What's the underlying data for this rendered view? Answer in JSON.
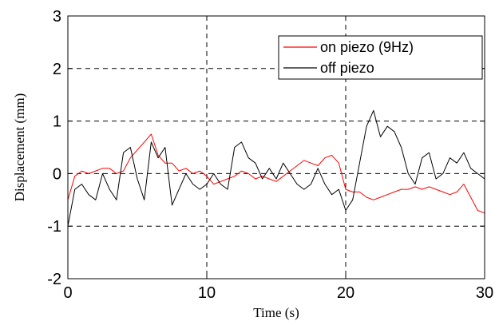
{
  "chart_data": {
    "type": "line",
    "title": "",
    "xlabel": "Time (s)",
    "ylabel": "Displacement (mm)",
    "xlim": [
      0,
      30
    ],
    "ylim": [
      -2,
      3
    ],
    "xticks": [
      0,
      10,
      20,
      30
    ],
    "yticks": [
      -2,
      -1,
      0,
      1,
      2,
      3
    ],
    "xtick_labels": [
      "0",
      "10",
      "20",
      "30"
    ],
    "ytick_labels": [
      "-2",
      "-1",
      "0",
      "1",
      "2",
      "3"
    ],
    "grid": true,
    "legend_position": "top-right",
    "series": [
      {
        "name": "on piezo (9Hz)",
        "color": "#ff0000",
        "x": [
          0,
          0.5,
          1,
          1.5,
          2,
          2.5,
          3,
          3.5,
          4,
          4.5,
          5,
          5.5,
          6,
          6.5,
          7,
          7.5,
          8,
          8.5,
          9,
          9.5,
          10,
          10.5,
          11,
          11.5,
          12,
          12.5,
          13,
          13.5,
          14,
          14.5,
          15,
          15.5,
          16,
          16.5,
          17,
          17.5,
          18,
          18.5,
          19,
          19.5,
          20,
          20.5,
          21,
          21.5,
          22,
          22.5,
          23,
          23.5,
          24,
          24.5,
          25,
          25.5,
          26,
          26.5,
          27,
          27.5,
          28,
          28.5,
          29,
          29.5,
          30
        ],
        "y": [
          -0.5,
          -0.05,
          0.05,
          0.0,
          0.05,
          0.1,
          0.1,
          0.0,
          0.05,
          0.3,
          0.45,
          0.6,
          0.75,
          0.35,
          0.2,
          0.2,
          0.05,
          0.1,
          0.0,
          0.05,
          -0.05,
          -0.2,
          -0.15,
          -0.1,
          -0.05,
          0.05,
          0.0,
          -0.1,
          -0.05,
          -0.1,
          -0.15,
          -0.05,
          0.05,
          0.15,
          0.25,
          0.2,
          0.15,
          0.3,
          0.35,
          0.2,
          -0.3,
          -0.35,
          -0.35,
          -0.45,
          -0.5,
          -0.45,
          -0.4,
          -0.35,
          -0.3,
          -0.3,
          -0.25,
          -0.3,
          -0.25,
          -0.3,
          -0.35,
          -0.4,
          -0.35,
          -0.2,
          -0.45,
          -0.7,
          -0.75
        ]
      },
      {
        "name": "off piezo",
        "color": "#000000",
        "x": [
          0,
          0.5,
          1,
          1.5,
          2,
          2.5,
          3,
          3.5,
          4,
          4.5,
          5,
          5.5,
          6,
          6.5,
          7,
          7.5,
          8,
          8.5,
          9,
          9.5,
          10,
          10.5,
          11,
          11.5,
          12,
          12.5,
          13,
          13.5,
          14,
          14.5,
          15,
          15.5,
          16,
          16.5,
          17,
          17.5,
          18,
          18.5,
          19,
          19.5,
          20,
          20.5,
          21,
          21.5,
          22,
          22.5,
          23,
          23.5,
          24,
          24.5,
          25,
          25.5,
          26,
          26.5,
          27,
          27.5,
          28,
          28.5,
          29,
          29.5,
          30
        ],
        "y": [
          -1.0,
          -0.3,
          -0.2,
          -0.4,
          -0.5,
          0.0,
          -0.3,
          -0.5,
          0.4,
          0.5,
          -0.1,
          -0.5,
          0.6,
          0.3,
          0.5,
          -0.6,
          -0.3,
          0.0,
          -0.2,
          -0.3,
          -0.2,
          0.0,
          -0.2,
          -0.3,
          0.5,
          0.6,
          0.3,
          0.2,
          -0.1,
          0.1,
          -0.1,
          0.2,
          0.0,
          -0.2,
          -0.3,
          -0.2,
          0.1,
          -0.2,
          -0.4,
          -0.3,
          -0.7,
          -0.5,
          0.2,
          0.9,
          1.2,
          0.7,
          0.9,
          0.8,
          0.5,
          0.0,
          -0.2,
          0.3,
          0.4,
          -0.1,
          0.0,
          0.3,
          0.2,
          0.4,
          0.1,
          0.0,
          -0.1
        ]
      }
    ]
  }
}
